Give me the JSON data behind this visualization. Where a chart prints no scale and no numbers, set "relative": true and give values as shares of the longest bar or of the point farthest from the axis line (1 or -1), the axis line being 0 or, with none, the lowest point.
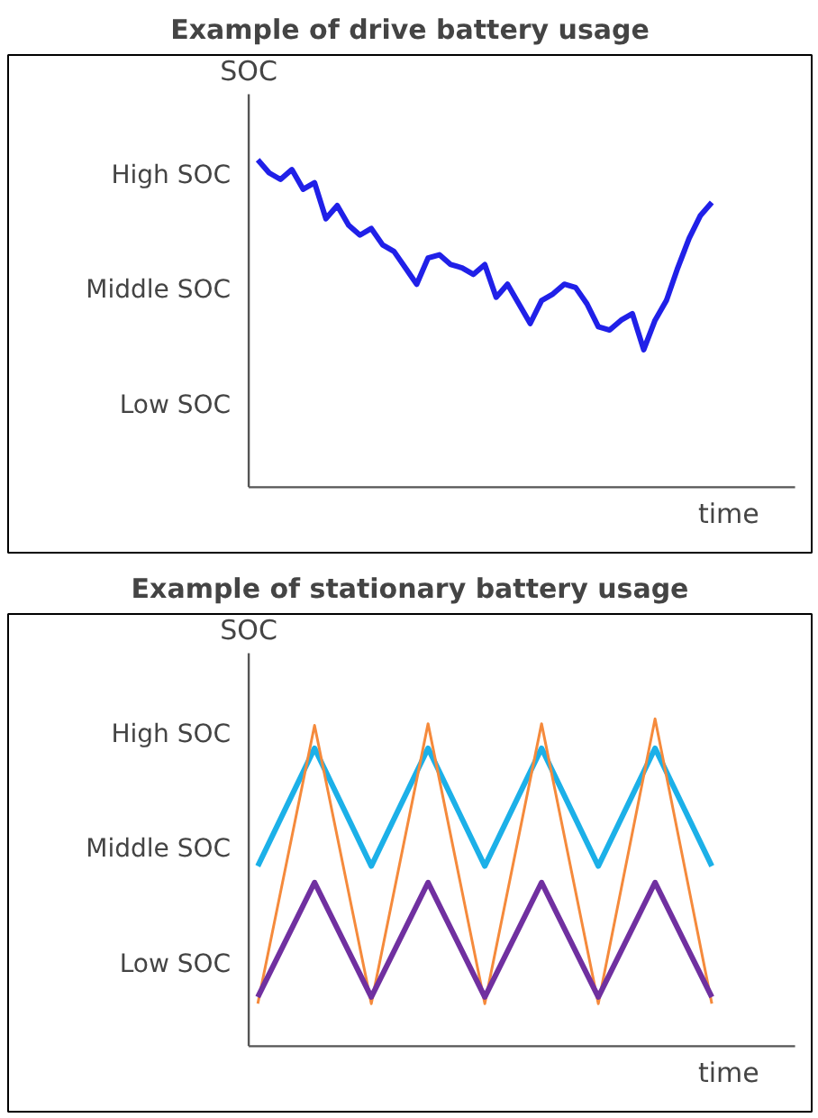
{
  "chart_data": [
    {
      "type": "line",
      "title": "Example of drive battery usage",
      "ylabel": "SOC",
      "xlabel": "time",
      "relative": true,
      "grid": false,
      "categories": [
        null,
        null,
        null,
        null,
        null,
        null,
        null,
        null,
        null,
        null,
        null,
        null,
        null,
        null,
        null,
        null,
        null,
        null,
        null,
        null,
        null,
        null,
        null,
        null,
        null,
        null,
        null,
        null,
        null,
        null,
        null,
        null,
        null,
        null,
        null,
        null,
        null,
        null,
        null,
        null,
        null
      ],
      "annotations": [
        "High SOC",
        "Middle SOC",
        "Low SOC"
      ],
      "series": [
        {
          "color": "#2020e8",
          "values": [
            1.0,
            0.96,
            0.94,
            0.97,
            0.91,
            0.93,
            0.82,
            0.86,
            0.8,
            0.77,
            0.79,
            0.74,
            0.72,
            0.67,
            0.62,
            0.7,
            0.71,
            0.68,
            0.67,
            0.65,
            0.68,
            0.58,
            0.62,
            0.56,
            0.5,
            0.57,
            0.59,
            0.62,
            0.61,
            0.56,
            0.49,
            0.48,
            0.51,
            0.53,
            0.42,
            0.51,
            0.57,
            0.67,
            0.76,
            0.83,
            0.87
          ]
        }
      ]
    },
    {
      "type": "line",
      "title": "Example of stationary battery usage",
      "ylabel": "SOC",
      "xlabel": "time",
      "relative": true,
      "grid": false,
      "categories": [
        null,
        null,
        null,
        null,
        null,
        null,
        null,
        null,
        null
      ],
      "annotations": [
        "High SOC",
        "Middle SOC",
        "Low SOC"
      ],
      "series": [
        {
          "color": "#1cb0e8",
          "values": [
            0.55,
            0.91,
            0.55,
            0.91,
            0.55,
            0.91,
            0.55,
            0.91,
            0.55
          ]
        },
        {
          "color": "#f58a3c",
          "values": [
            0.13,
            0.98,
            0.13,
            0.985,
            0.13,
            0.985,
            0.13,
            1.0,
            0.13
          ]
        },
        {
          "color": "#7030a0",
          "values": [
            0.15,
            0.5,
            0.15,
            0.5,
            0.15,
            0.5,
            0.15,
            0.5,
            0.15
          ]
        }
      ]
    }
  ]
}
